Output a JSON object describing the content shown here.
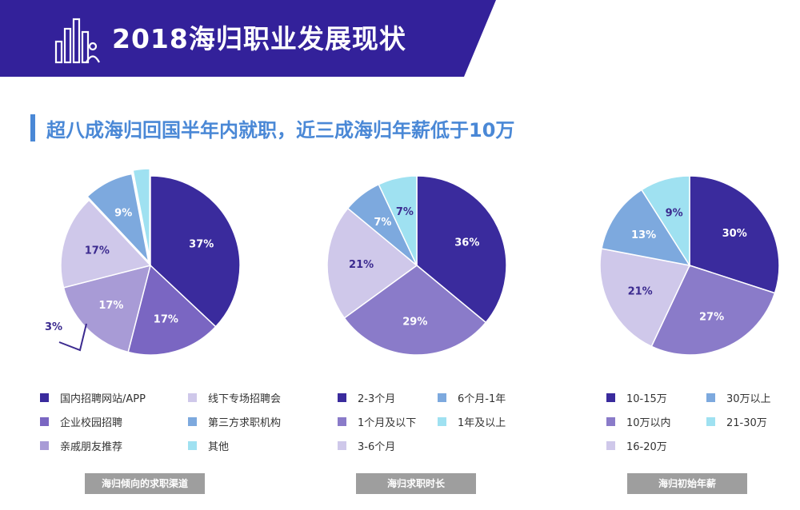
{
  "header": {
    "title": "2018海归职业发展现状",
    "icon": "bar-chart-people-icon"
  },
  "subtitle": "超八成海归回国半年内就职，近三成海归年薪低于10万",
  "colors": {
    "banner": "#33219a",
    "subtitle": "#4a88d6",
    "slice_text_dark": "#3b2a8f",
    "caption_bg": "#9e9e9e"
  },
  "chart_data": [
    {
      "type": "pie",
      "title": "海归倾向的求职渠道",
      "slices": [
        {
          "label": "国内招聘网站/APP",
          "value": 37,
          "display": "37%",
          "color": "#3a2b9d",
          "text_color": "#ffffff"
        },
        {
          "label": "企业校园招聘",
          "value": 17,
          "display": "17%",
          "color": "#7a66c2",
          "text_color": "#ffffff"
        },
        {
          "label": "亲戚朋友推荐",
          "value": 17,
          "display": "17%",
          "color": "#a89bd6",
          "text_color": "#ffffff"
        },
        {
          "label": "线下专场招聘会",
          "value": 17,
          "display": "17%",
          "color": "#cfc8ea",
          "text_color": "#3b2a8f"
        },
        {
          "label": "第三方求职机构",
          "value": 9,
          "display": "9%",
          "color": "#7da9de",
          "text_color": "#ffffff"
        },
        {
          "label": "其他",
          "value": 3,
          "display": "3%",
          "color": "#9fe1f1",
          "text_color": "#3b2a8f"
        }
      ]
    },
    {
      "type": "pie",
      "title": "海归求职时长",
      "slices": [
        {
          "label": "2-3个月",
          "value": 36,
          "display": "36%",
          "color": "#3a2b9d",
          "text_color": "#ffffff"
        },
        {
          "label": "1个月及以下",
          "value": 29,
          "display": "29%",
          "color": "#8a7bc9",
          "text_color": "#ffffff"
        },
        {
          "label": "3-6个月",
          "value": 21,
          "display": "21%",
          "color": "#cfc8ea",
          "text_color": "#3b2a8f"
        },
        {
          "label": "6个月-1年",
          "value": 7,
          "display": "7%",
          "color": "#7da9de",
          "text_color": "#ffffff"
        },
        {
          "label": "1年及以上",
          "value": 7,
          "display": "7%",
          "color": "#9fe1f1",
          "text_color": "#3b2a8f"
        }
      ]
    },
    {
      "type": "pie",
      "title": "海归初始年薪",
      "slices": [
        {
          "label": "10-15万",
          "value": 30,
          "display": "30%",
          "color": "#3a2b9d",
          "text_color": "#ffffff"
        },
        {
          "label": "10万以内",
          "value": 27,
          "display": "27%",
          "color": "#8a7bc9",
          "text_color": "#ffffff"
        },
        {
          "label": "16-20万",
          "value": 21,
          "display": "21%",
          "color": "#cfc8ea",
          "text_color": "#3b2a8f"
        },
        {
          "label": "30万以上",
          "value": 13,
          "display": "13%",
          "color": "#7da9de",
          "text_color": "#ffffff"
        },
        {
          "label": "21-30万",
          "value": 9,
          "display": "9%",
          "color": "#9fe1f1",
          "text_color": "#3b2a8f"
        }
      ]
    }
  ],
  "legends": [
    [
      "国内招聘网站/APP",
      "线下专场招聘会",
      "企业校园招聘",
      "第三方求职机构",
      "亲戚朋友推荐",
      "其他"
    ],
    [
      "2-3个月",
      "6个月-1年",
      "1个月及以下",
      "1年及以上",
      "3-6个月"
    ],
    [
      "10-15万",
      "30万以上",
      "10万以内",
      "21-30万",
      "16-20万"
    ]
  ]
}
